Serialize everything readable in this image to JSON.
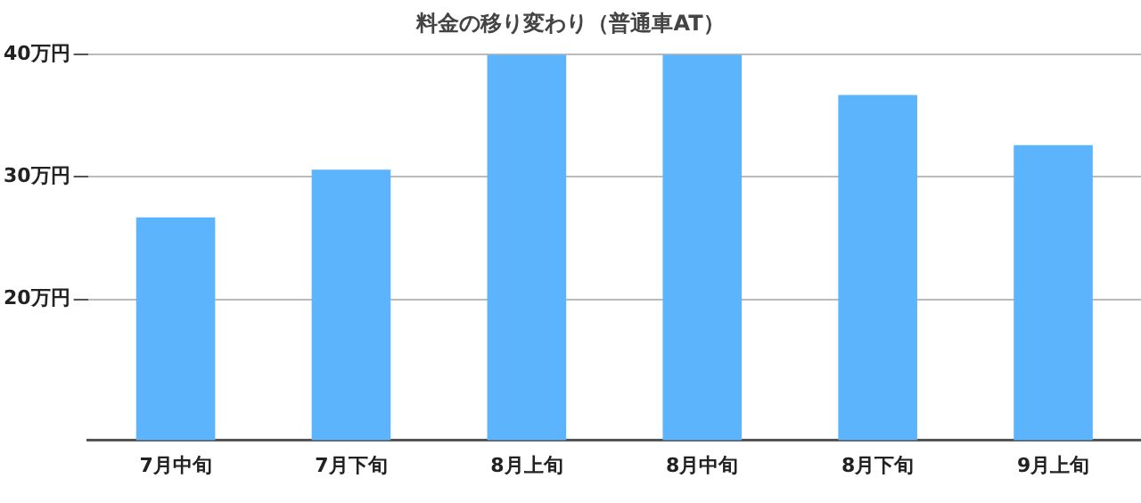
{
  "chart_data": {
    "type": "bar",
    "title": "料金の移り変わり（普通車AT）",
    "categories": [
      "7月中旬",
      "7月下旬",
      "8月上旬",
      "8月中旬",
      "8月下旬",
      "9月上旬"
    ],
    "values": [
      26.7,
      30.6,
      40,
      40,
      36.7,
      32.6
    ],
    "color": "#5cb5fc",
    "ylim": [
      8.5,
      40
    ],
    "yticks": [
      {
        "value": 20,
        "label": "20万円"
      },
      {
        "value": 30,
        "label": "30万円"
      },
      {
        "value": 40,
        "label": "40万円"
      }
    ],
    "grid": "y"
  }
}
